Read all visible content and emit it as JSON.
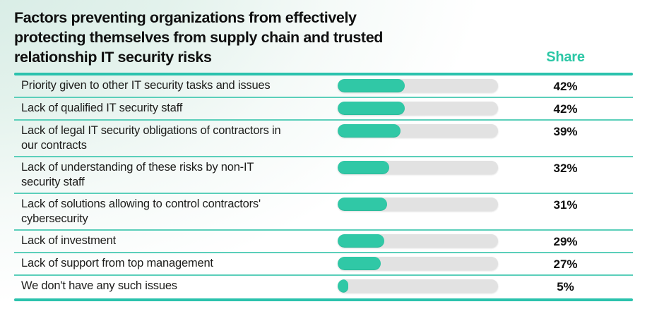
{
  "title_lines": [
    "Factors preventing organizations from effectively",
    "protecting themselves from supply chain and trusted",
    "relationship IT security risks"
  ],
  "share_header": "Share",
  "colors": {
    "accent_teal": "#2cc7a6",
    "bar_fill": "#30c8a6",
    "bar_track": "#e2e2e2",
    "divider_thick": "#2bc2ad",
    "divider_thin": "#5bcfba",
    "background_tint": "#d5ebe4",
    "text": "#0f0f0f"
  },
  "rows": [
    {
      "label": "Priority given to other IT security tasks and issues",
      "value": 42,
      "value_label": "42%"
    },
    {
      "label": "Lack of qualified IT security staff",
      "value": 42,
      "value_label": "42%"
    },
    {
      "label": "Lack of legal IT security obligations of contractors in\nour contracts",
      "value": 39,
      "value_label": "39%"
    },
    {
      "label": "Lack of understanding of these risks by non-IT\nsecurity staff",
      "value": 32,
      "value_label": "32%"
    },
    {
      "label": "Lack of solutions allowing to control contractors'\ncybersecurity",
      "value": 31,
      "value_label": "31%"
    },
    {
      "label": "Lack of investment",
      "value": 29,
      "value_label": "29%"
    },
    {
      "label": "Lack of support from top management",
      "value": 27,
      "value_label": "27%"
    },
    {
      "label": "We don't have any such issues",
      "value": 5,
      "value_label": "5%"
    }
  ],
  "chart_data": {
    "type": "bar",
    "orientation": "horizontal",
    "title": "Factors preventing organizations from effectively protecting themselves from supply chain and trusted relationship IT security risks",
    "value_column_header": "Share",
    "categories": [
      "Priority given to other IT security tasks and issues",
      "Lack of qualified IT security staff",
      "Lack of legal IT security obligations of contractors in our contracts",
      "Lack of understanding of these risks by non-IT security staff",
      "Lack of solutions allowing to control contractors' cybersecurity",
      "Lack of investment",
      "Lack of support from top management",
      "We don't have any such issues"
    ],
    "values": [
      42,
      42,
      39,
      32,
      31,
      29,
      27,
      5
    ],
    "value_suffix": "%",
    "xlim": [
      0,
      100
    ],
    "grid": false,
    "legend": false
  }
}
